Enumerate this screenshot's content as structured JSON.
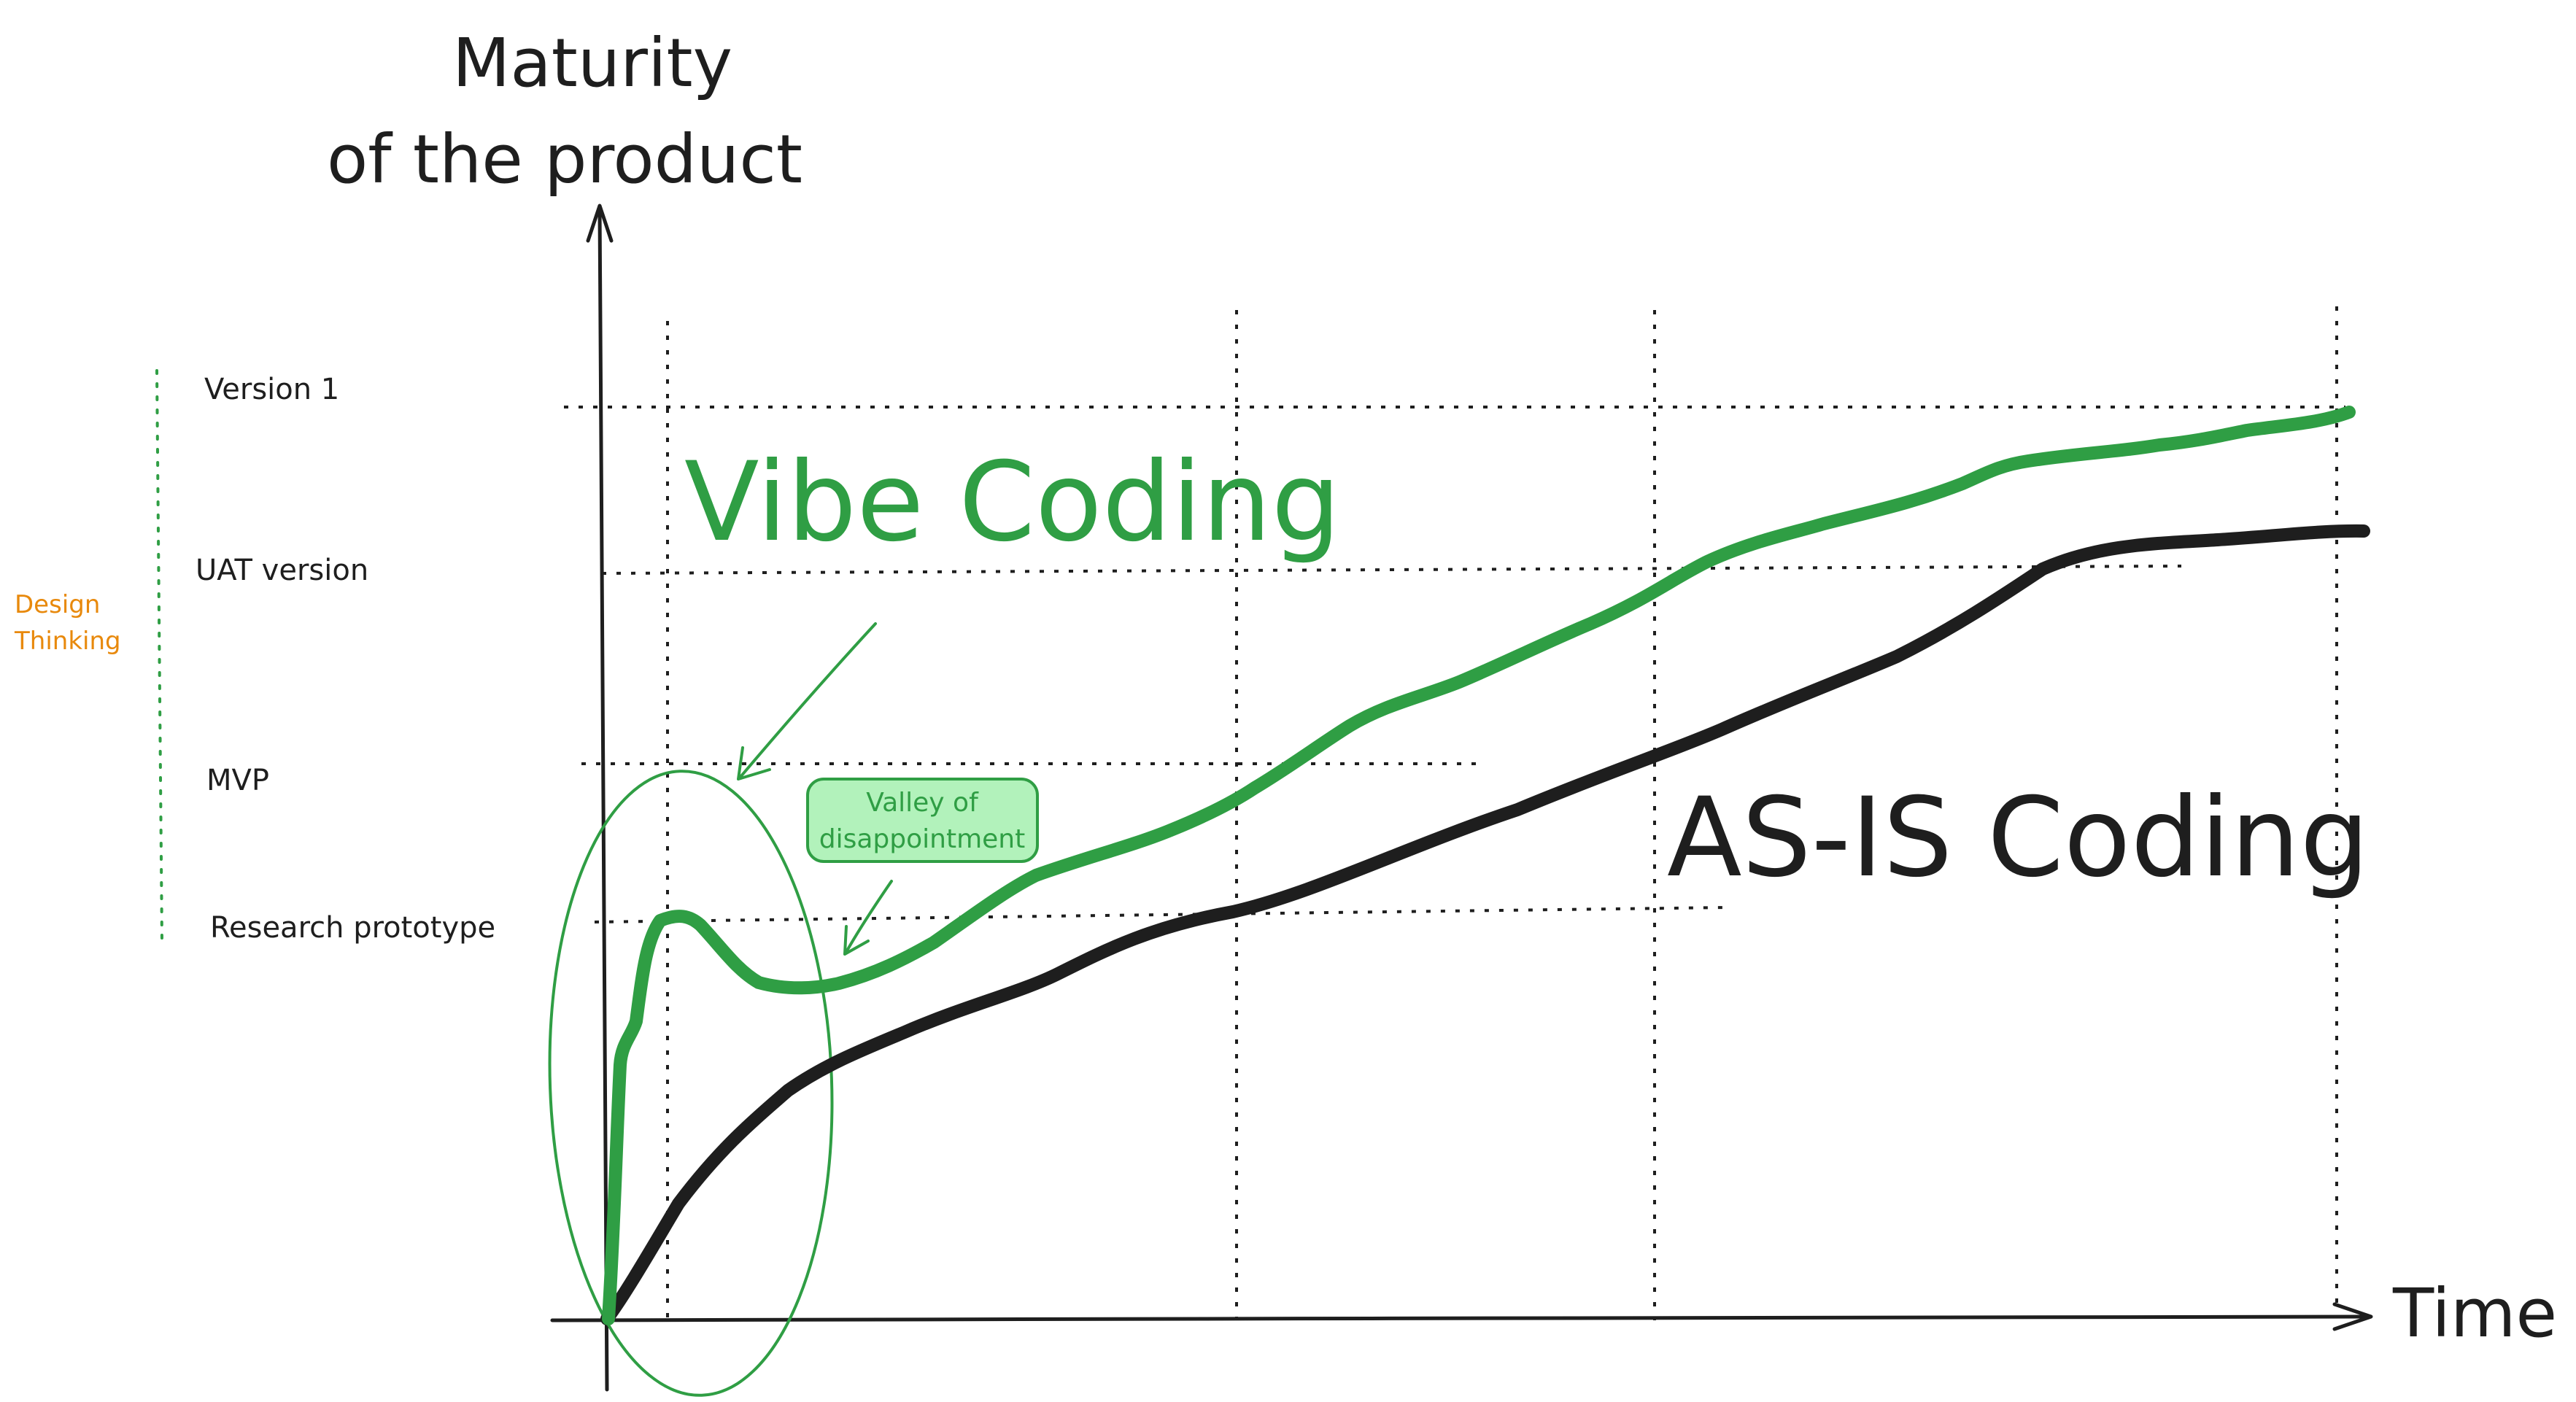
{
  "axes": {
    "y_title_line1": "Maturity",
    "y_title_line2": "of the product",
    "x_title": "Time"
  },
  "levels": [
    {
      "label": "Version 1"
    },
    {
      "label": "UAT version"
    },
    {
      "label": "MVP"
    },
    {
      "label": "Research prototype"
    }
  ],
  "side_group": {
    "line1": "Design",
    "line2": "Thinking",
    "color": "#e8890c"
  },
  "series": {
    "vibe": {
      "label": "Vibe Coding",
      "color": "#2f9e44"
    },
    "asis": {
      "label": "AS-IS Coding",
      "color": "#1e1e1e"
    }
  },
  "annotation": {
    "line1": "Valley of",
    "line2": "disappointment",
    "fill": "#b2f2bb",
    "stroke": "#2f9e44"
  }
}
